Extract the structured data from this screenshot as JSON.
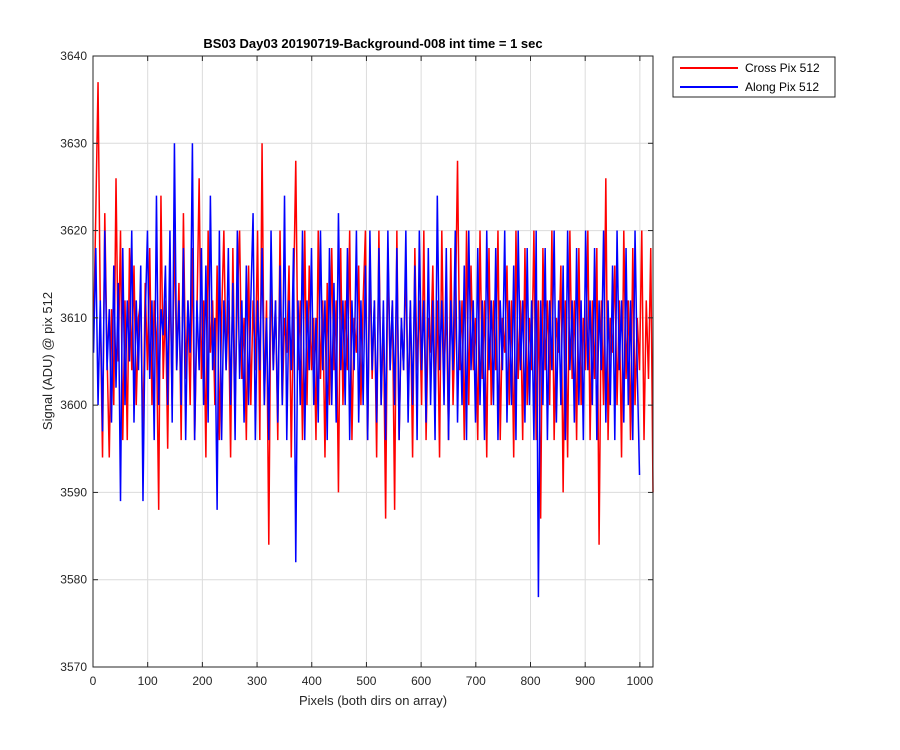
{
  "chart_data": {
    "type": "line",
    "title": "BS03 Day03 20190719-Background-008 int time = 1 sec",
    "xlabel": "Pixels (both dirs on array)",
    "ylabel": "Signal (ADU) @ pix 512",
    "xlim": [
      0,
      1024
    ],
    "ylim": [
      3570,
      3640
    ],
    "x_ticks": [
      "0",
      "100",
      "200",
      "300",
      "400",
      "500",
      "600",
      "700",
      "800",
      "900",
      "1000"
    ],
    "y_ticks": [
      "3570",
      "3580",
      "3590",
      "3600",
      "3610",
      "3620",
      "3630",
      "3640"
    ],
    "grid": true,
    "legend_position": "outside top-right",
    "x_start": 1,
    "x_step": 1,
    "series": [
      {
        "name": "Cross Pix 512",
        "color": "#ff0000",
        "values": [
          3608,
          3622,
          3637,
          3611,
          3594,
          3622,
          3606,
          3594,
          3611,
          3600,
          3626,
          3605,
          3620,
          3596,
          3612,
          3596,
          3618,
          3604,
          3616,
          3600,
          3610,
          3612,
          3596,
          3614,
          3604,
          3618,
          3600,
          3612,
          3608,
          3588,
          3624,
          3603,
          3612,
          3595,
          3616,
          3600,
          3620,
          3604,
          3614,
          3596,
          3622,
          3603,
          3612,
          3600,
          3618,
          3596,
          3610,
          3626,
          3603,
          3612,
          3594,
          3620,
          3606,
          3612,
          3600,
          3616,
          3596,
          3610,
          3620,
          3604,
          3612,
          3594,
          3618,
          3600,
          3612,
          3620,
          3603,
          3610,
          3596,
          3616,
          3600,
          3612,
          3604,
          3620,
          3596,
          3630,
          3600,
          3612,
          3584,
          3616,
          3604,
          3612,
          3596,
          3620,
          3600,
          3610,
          3606,
          3616,
          3594,
          3612,
          3628,
          3604,
          3612,
          3596,
          3620,
          3600,
          3616,
          3604,
          3610,
          3596,
          3620,
          3603,
          3612,
          3594,
          3614,
          3600,
          3618,
          3604,
          3612,
          3590,
          3618,
          3600,
          3612,
          3604,
          3620,
          3596,
          3610,
          3606,
          3616,
          3600,
          3612,
          3620,
          3596,
          3616,
          3603,
          3612,
          3594,
          3620,
          3600,
          3610,
          3587,
          3618,
          3604,
          3612,
          3588,
          3620,
          3596,
          3610,
          3604,
          3616,
          3600,
          3612,
          3594,
          3618,
          3604,
          3612,
          3600,
          3620,
          3596,
          3610,
          3606,
          3616,
          3600,
          3612,
          3594,
          3620,
          3603,
          3612,
          3596,
          3618,
          3600,
          3610,
          3628,
          3604,
          3612,
          3596,
          3620,
          3600,
          3616,
          3604,
          3610,
          3596,
          3620,
          3603,
          3612,
          3594,
          3618,
          3600,
          3612,
          3604,
          3620,
          3596,
          3610,
          3606,
          3616,
          3600,
          3612,
          3594,
          3620,
          3603,
          3612,
          3596,
          3618,
          3600,
          3610,
          3604,
          3620,
          3596,
          3612,
          3587,
          3618,
          3604,
          3612,
          3600,
          3620,
          3596,
          3610,
          3606,
          3616,
          3590,
          3612,
          3594,
          3620,
          3603,
          3612,
          3596,
          3618,
          3600,
          3610,
          3604,
          3620,
          3596,
          3612,
          3603,
          3618,
          3584,
          3612,
          3600,
          3626,
          3596,
          3610,
          3606,
          3616,
          3600,
          3612,
          3594,
          3620,
          3603,
          3612,
          3596,
          3618,
          3600,
          3610,
          3604,
          3620,
          3596,
          3612,
          3603,
          3618,
          3590
        ]
      },
      {
        "name": "Along Pix 512",
        "color": "#0000ff",
        "values": [
          3606,
          3618,
          3600,
          3612,
          3597,
          3620,
          3604,
          3611,
          3598,
          3616,
          3602,
          3614,
          3589,
          3618,
          3600,
          3612,
          3605,
          3620,
          3598,
          3612,
          3604,
          3616,
          3589,
          3610,
          3620,
          3603,
          3612,
          3596,
          3624,
          3600,
          3611,
          3608,
          3616,
          3600,
          3620,
          3598,
          3630,
          3604,
          3612,
          3600,
          3618,
          3596,
          3612,
          3606,
          3630,
          3596,
          3612,
          3604,
          3618,
          3600,
          3616,
          3598,
          3624,
          3604,
          3610,
          3588,
          3620,
          3596,
          3612,
          3604,
          3618,
          3600,
          3614,
          3596,
          3620,
          3603,
          3612,
          3598,
          3616,
          3600,
          3612,
          3622,
          3596,
          3612,
          3604,
          3618,
          3600,
          3610,
          3596,
          3620,
          3604,
          3612,
          3598,
          3616,
          3600,
          3624,
          3596,
          3612,
          3604,
          3618,
          3582,
          3612,
          3600,
          3620,
          3596,
          3612,
          3604,
          3618,
          3600,
          3610,
          3598,
          3620,
          3604,
          3612,
          3596,
          3618,
          3600,
          3614,
          3598,
          3622,
          3604,
          3612,
          3600,
          3618,
          3596,
          3612,
          3604,
          3620,
          3598,
          3612,
          3600,
          3616,
          3596,
          3620,
          3604,
          3612,
          3598,
          3618,
          3600,
          3612,
          3596,
          3620,
          3604,
          3612,
          3600,
          3618,
          3596,
          3610,
          3604,
          3620,
          3598,
          3612,
          3600,
          3616,
          3596,
          3620,
          3604,
          3612,
          3598,
          3618,
          3600,
          3612,
          3596,
          3624,
          3604,
          3612,
          3600,
          3618,
          3596,
          3612,
          3604,
          3620,
          3598,
          3612,
          3600,
          3616,
          3596,
          3620,
          3604,
          3612,
          3598,
          3618,
          3600,
          3612,
          3596,
          3620,
          3604,
          3612,
          3600,
          3618,
          3596,
          3612,
          3604,
          3620,
          3598,
          3612,
          3600,
          3616,
          3596,
          3620,
          3604,
          3612,
          3598,
          3618,
          3600,
          3612,
          3596,
          3620,
          3578,
          3612,
          3600,
          3618,
          3596,
          3612,
          3604,
          3620,
          3598,
          3612,
          3600,
          3616,
          3596,
          3620,
          3604,
          3612,
          3598,
          3618,
          3600,
          3612,
          3596,
          3620,
          3604,
          3612,
          3600,
          3618,
          3596,
          3612,
          3604,
          3620,
          3598,
          3612,
          3600,
          3616,
          3596,
          3620,
          3604,
          3612,
          3598,
          3618,
          3600,
          3612,
          3596,
          3620,
          3604,
          3592
        ]
      }
    ]
  }
}
